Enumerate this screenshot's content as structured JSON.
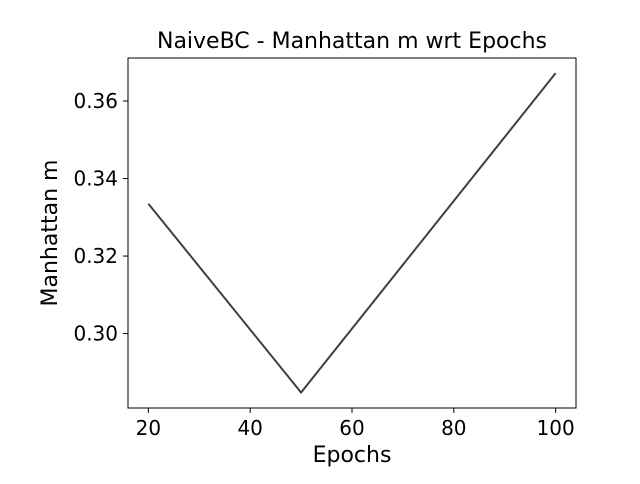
{
  "chart_data": {
    "type": "line",
    "title": "NaiveBC - Manhattan m wrt Epochs",
    "xlabel": "Epochs",
    "ylabel": "Manhattan m",
    "xlim": [
      16,
      104
    ],
    "ylim": [
      0.2808,
      0.3711
    ],
    "x_ticks": [
      20,
      40,
      60,
      80,
      100
    ],
    "y_ticks": [
      0.3,
      0.32,
      0.34,
      0.36
    ],
    "x_tick_labels": [
      "20",
      "40",
      "60",
      "80",
      "100"
    ],
    "y_tick_labels": [
      "0.30",
      "0.32",
      "0.34",
      "0.36"
    ],
    "grid": false,
    "series": [
      {
        "color": "#404040",
        "x": [
          20,
          50,
          100
        ],
        "y": [
          0.3335,
          0.2848,
          0.3672
        ]
      }
    ]
  }
}
